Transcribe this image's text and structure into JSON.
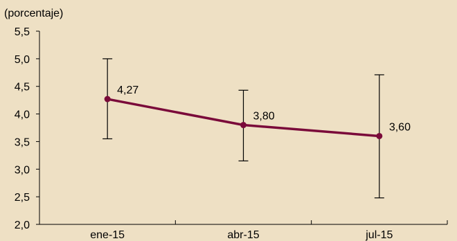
{
  "colors": {
    "background": "#eee0c4",
    "series": "#7a0a3a",
    "axis": "#000000",
    "error_bar": "#000000"
  },
  "chart_data": {
    "type": "line",
    "unit_label": "(porcentaje)",
    "categories": [
      "ene-15",
      "abr-15",
      "jul-15"
    ],
    "series": [
      {
        "values": [
          4.27,
          3.8,
          3.6
        ],
        "labels": [
          "4,27",
          "3,80",
          "3,60"
        ],
        "error_low": [
          3.55,
          3.15,
          2.48
        ],
        "error_high": [
          5.0,
          4.43,
          4.71
        ],
        "marker": "circle"
      }
    ],
    "ylim": [
      2.0,
      5.5
    ],
    "yticks": [
      "2,0",
      "2,5",
      "3,0",
      "3,5",
      "4,0",
      "4,5",
      "5,0",
      "5,5"
    ],
    "ytick_values": [
      2.0,
      2.5,
      3.0,
      3.5,
      4.0,
      4.5,
      5.0,
      5.5
    ],
    "grid": false,
    "legend": "none"
  }
}
